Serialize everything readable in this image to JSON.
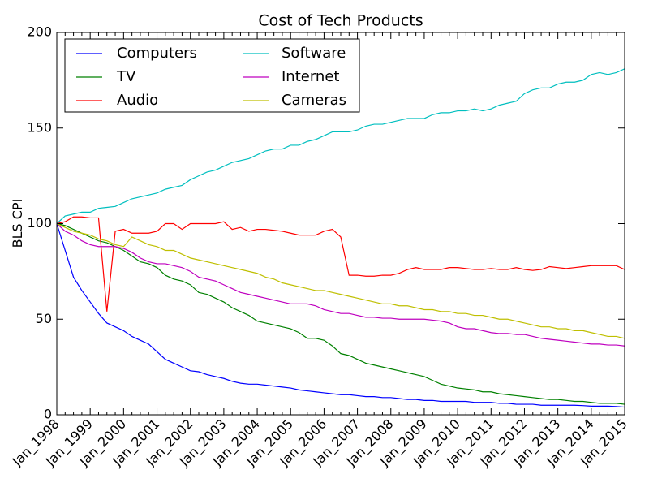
{
  "chart_data": {
    "type": "line",
    "title": "Cost of Tech Products",
    "y_label": "BLS CPI",
    "categories": [
      "Jan_1998",
      null,
      null,
      null,
      "Jan_1999",
      null,
      null,
      null,
      "Jan_2000",
      null,
      null,
      null,
      "Jan_2001",
      null,
      null,
      null,
      "Jan_2002",
      null,
      null,
      null,
      "Jan_2003",
      null,
      null,
      null,
      "Jan_2004",
      null,
      null,
      null,
      "Jan_2005",
      null,
      null,
      null,
      "Jan_2006",
      null,
      null,
      null,
      "Jan_2007",
      null,
      null,
      null,
      "Jan_2008",
      null,
      null,
      null,
      "Jan_2009",
      null,
      null,
      null,
      "Jan_2010",
      null,
      null,
      null,
      "Jan_2011",
      null,
      null,
      null,
      "Jan_2012",
      null,
      null,
      null,
      "Jan_2013",
      null,
      null,
      null,
      "Jan_2014",
      null,
      null,
      null,
      "Jan_2015"
    ],
    "series": [
      {
        "name": "Computers",
        "color": "#0000ff",
        "values": [
          100,
          86,
          72,
          65,
          59,
          53,
          48,
          46,
          44,
          41,
          39,
          37,
          33,
          29,
          27,
          25,
          23,
          22.5,
          21,
          20,
          19,
          17.5,
          16.5,
          16,
          16,
          15.5,
          15,
          14.5,
          14,
          13,
          12.5,
          12,
          11.5,
          11,
          10.5,
          10.5,
          10,
          9.5,
          9.5,
          9,
          9,
          8.5,
          8,
          8,
          7.5,
          7.5,
          7,
          7,
          7,
          7,
          6.5,
          6.5,
          6.5,
          6,
          6,
          5.5,
          5.5,
          5.5,
          5,
          5,
          5,
          5,
          5,
          4.8,
          4.5,
          4.5,
          4.5,
          4.3,
          4
        ]
      },
      {
        "name": "TV",
        "color": "#008000",
        "values": [
          100,
          99,
          97,
          95,
          93,
          91,
          90,
          88,
          86,
          83,
          80,
          79,
          77,
          73,
          71,
          70,
          68,
          64,
          63,
          61,
          59,
          56,
          54,
          52,
          49,
          48,
          47,
          46,
          45,
          43,
          40,
          40,
          39,
          36,
          32,
          31,
          29,
          27,
          26,
          25,
          24,
          23,
          22,
          21,
          20,
          18,
          16,
          15,
          14,
          13.5,
          13,
          12,
          12,
          11,
          10.5,
          10,
          9.5,
          9,
          8.5,
          8,
          8,
          7.5,
          7,
          7,
          6.5,
          6,
          6,
          6,
          5.5
        ]
      },
      {
        "name": "Audio",
        "color": "#ff0000",
        "values": [
          100,
          101,
          103.5,
          103.5,
          103,
          103,
          54,
          96,
          97,
          95,
          95,
          95,
          96,
          100,
          100,
          97,
          100,
          100,
          100,
          100,
          101,
          97,
          98,
          96,
          97,
          97,
          96.5,
          96,
          95,
          94,
          94,
          94,
          96,
          97,
          93,
          73,
          73,
          72.5,
          72.5,
          73,
          73,
          74,
          76,
          77,
          76,
          76,
          76,
          77,
          77,
          76.5,
          76,
          76,
          76.5,
          76,
          76,
          77,
          76,
          75.5,
          76,
          77.5,
          77,
          76.5,
          77,
          77.5,
          78,
          78,
          78,
          78,
          76
        ]
      },
      {
        "name": "Software",
        "color": "#00bfbf",
        "values": [
          100,
          104,
          105,
          106,
          106,
          108,
          108.5,
          109,
          111,
          113,
          114,
          115,
          116,
          118,
          119,
          120,
          123,
          125,
          127,
          128,
          130,
          132,
          133,
          134,
          136,
          138,
          139,
          139,
          141,
          141,
          143,
          144,
          146,
          148,
          148,
          148,
          149,
          151,
          152,
          152,
          153,
          154,
          155,
          155,
          155,
          157,
          158,
          158,
          159,
          159,
          160,
          159,
          160,
          162,
          163,
          164,
          168,
          170,
          171,
          171,
          173,
          174,
          174,
          175,
          178,
          179,
          178,
          179,
          181
        ]
      },
      {
        "name": "Internet",
        "color": "#bf00bf",
        "values": [
          100,
          96,
          94,
          91,
          89,
          88,
          88,
          88,
          87,
          85,
          82,
          80,
          79,
          79,
          78,
          77,
          75,
          72,
          71,
          70,
          68,
          66,
          64,
          63,
          62,
          61,
          60,
          59,
          58,
          58,
          58,
          57,
          55,
          54,
          53,
          53,
          52,
          51,
          51,
          50.5,
          50.5,
          50,
          50,
          50,
          50,
          49.5,
          49,
          48,
          46,
          45,
          45,
          44,
          43,
          42.5,
          42.5,
          42,
          42,
          41,
          40,
          39.5,
          39,
          38.5,
          38,
          37.5,
          37,
          37,
          36.5,
          36.5,
          36
        ]
      },
      {
        "name": "Cameras",
        "color": "#bfbf00",
        "values": [
          100,
          98,
          96,
          95,
          94,
          92,
          91,
          89,
          88,
          93,
          91,
          89,
          88,
          86,
          86,
          84,
          82,
          81,
          80,
          79,
          78,
          77,
          76,
          75,
          74,
          72,
          71,
          69,
          68,
          67,
          66,
          65,
          65,
          64,
          63,
          62,
          61,
          60,
          59,
          58,
          58,
          57,
          57,
          56,
          55,
          55,
          54,
          54,
          53,
          53,
          52,
          52,
          51,
          50,
          50,
          49,
          48,
          47,
          46,
          46,
          45,
          45,
          44,
          44,
          43,
          42,
          41,
          41,
          40
        ]
      }
    ],
    "ylim": [
      0,
      200
    ],
    "yticks": [
      0,
      50,
      100,
      150,
      200
    ],
    "grid": false,
    "legend": "upper left",
    "legend_columns": 2
  }
}
